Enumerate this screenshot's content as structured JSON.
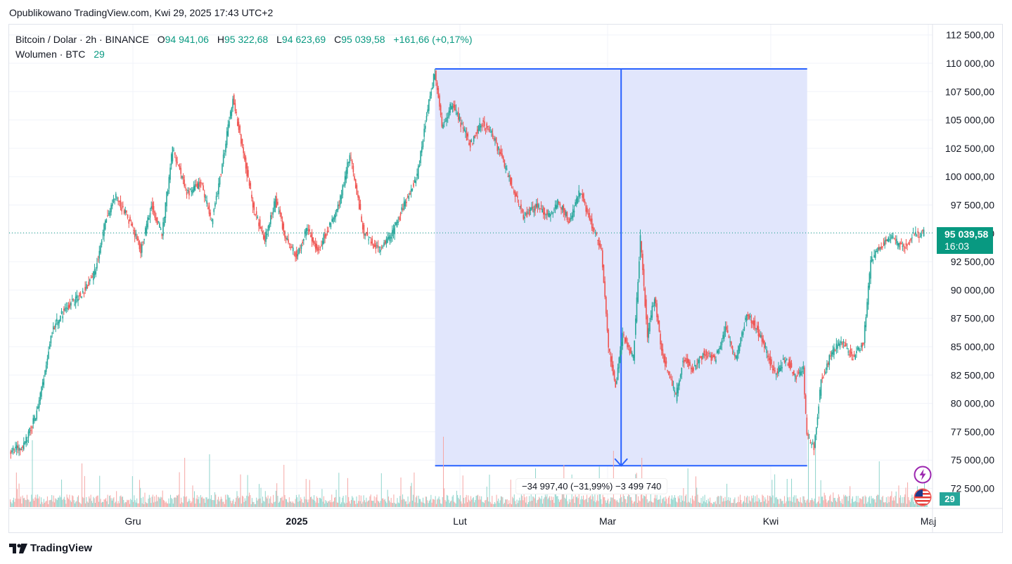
{
  "header": {
    "published_text": "Opublikowano TradingView.com, Kwi 29, 2025 17:43 UTC+2"
  },
  "legend": {
    "symbol": "Bitcoin / Dolar · 2h · BINANCE",
    "open_label": "O",
    "open": "94 941,06",
    "high_label": "H",
    "high": "95 322,68",
    "low_label": "L",
    "low": "94 623,69",
    "close_label": "C",
    "close": "95 039,58",
    "change": "+161,66 (+0,17%)",
    "volume_label": "Wolumen · BTC",
    "volume": "29"
  },
  "price_badge": {
    "price": "95 039,58",
    "countdown": "16:03"
  },
  "volume_badge": "29",
  "measure": {
    "label": "−34 997,40 (−31,99%) −3 499 740",
    "from_price": 109500,
    "to_price": 74500
  },
  "footer": {
    "brand": "TradingView"
  },
  "icons": {
    "bolt": "lightning-icon",
    "flag": "us-flag-icon",
    "logo": "tradingview-logo-icon"
  },
  "colors": {
    "up": "#26a69a",
    "down": "#ef5350",
    "measure_fill": "#dfe5fc",
    "measure_line": "#2962ff",
    "last_price": "#089981"
  },
  "chart_data": {
    "type": "candlestick",
    "title": "Bitcoin / Dolar · 2h · BINANCE",
    "y_axis_labels": [
      "112 500,00",
      "110 000,00",
      "107 500,00",
      "105 000,00",
      "102 500,00",
      "100 000,00",
      "97 500,00",
      "95 000,00",
      "92 500,00",
      "90 000,00",
      "87 500,00",
      "85 000,00",
      "82 500,00",
      "80 000,00",
      "77 500,00",
      "75 000,00",
      "72 500,00"
    ],
    "y_axis_values": [
      112500,
      110000,
      107500,
      105000,
      102500,
      100000,
      97500,
      95000,
      92500,
      90000,
      87500,
      85000,
      82500,
      80000,
      77500,
      75000,
      72500
    ],
    "x_axis_labels": [
      "Gru",
      "2025",
      "Lut",
      "Mar",
      "Kwi",
      "Maj"
    ],
    "ylim": [
      71000,
      114000
    ],
    "grid": true,
    "last_price": 95039.58,
    "price_path": [
      [
        0,
        75800
      ],
      [
        4,
        76200
      ],
      [
        8,
        79500
      ],
      [
        12,
        86500
      ],
      [
        16,
        88500
      ],
      [
        20,
        89500
      ],
      [
        24,
        91500
      ],
      [
        27,
        96000
      ],
      [
        30,
        98200
      ],
      [
        34,
        96000
      ],
      [
        37,
        93500
      ],
      [
        40,
        97500
      ],
      [
        43,
        95000
      ],
      [
        46,
        102500
      ],
      [
        50,
        98500
      ],
      [
        54,
        99500
      ],
      [
        57,
        96000
      ],
      [
        60,
        101000
      ],
      [
        63,
        107000
      ],
      [
        66,
        102000
      ],
      [
        69,
        97000
      ],
      [
        72,
        94500
      ],
      [
        75,
        98000
      ],
      [
        78,
        94500
      ],
      [
        81,
        93000
      ],
      [
        84,
        95500
      ],
      [
        87,
        93500
      ],
      [
        90,
        95500
      ],
      [
        93,
        97500
      ],
      [
        96,
        102000
      ],
      [
        100,
        95000
      ],
      [
        104,
        93500
      ],
      [
        108,
        95000
      ],
      [
        112,
        98000
      ],
      [
        115,
        100000
      ],
      [
        118,
        106000
      ],
      [
        120,
        109300
      ],
      [
        122,
        104500
      ],
      [
        125,
        106500
      ],
      [
        128,
        104200
      ],
      [
        130,
        102800
      ],
      [
        133,
        104800
      ],
      [
        136,
        104000
      ],
      [
        139,
        101500
      ],
      [
        142,
        99000
      ],
      [
        145,
        96500
      ],
      [
        149,
        97500
      ],
      [
        152,
        96500
      ],
      [
        155,
        97800
      ],
      [
        158,
        96000
      ],
      [
        161,
        98800
      ],
      [
        164,
        96000
      ],
      [
        167,
        93500
      ],
      [
        169,
        85000
      ],
      [
        171,
        81500
      ],
      [
        173,
        86000
      ],
      [
        176,
        84000
      ],
      [
        178,
        94500
      ],
      [
        180,
        86000
      ],
      [
        182,
        89500
      ],
      [
        184,
        84500
      ],
      [
        186,
        82500
      ],
      [
        188,
        80500
      ],
      [
        190,
        84000
      ],
      [
        193,
        83000
      ],
      [
        196,
        84500
      ],
      [
        199,
        83800
      ],
      [
        202,
        86500
      ],
      [
        205,
        84000
      ],
      [
        208,
        88000
      ],
      [
        211,
        86500
      ],
      [
        213,
        85000
      ],
      [
        216,
        82500
      ],
      [
        219,
        84000
      ],
      [
        222,
        82300
      ],
      [
        224,
        83000
      ],
      [
        225,
        77000
      ],
      [
        227,
        76000
      ],
      [
        229,
        82000
      ],
      [
        232,
        84500
      ],
      [
        235,
        85500
      ],
      [
        238,
        84000
      ],
      [
        241,
        85500
      ],
      [
        243,
        92500
      ],
      [
        246,
        94000
      ],
      [
        249,
        94500
      ],
      [
        252,
        93800
      ],
      [
        255,
        94800
      ],
      [
        258,
        95039
      ]
    ],
    "volume_max": 120,
    "volume_spikes": [
      [
        6,
        95
      ],
      [
        20,
        62
      ],
      [
        49,
        70
      ],
      [
        56,
        75
      ],
      [
        77,
        60
      ],
      [
        110,
        42
      ],
      [
        122,
        100
      ],
      [
        148,
        55
      ],
      [
        156,
        60
      ],
      [
        166,
        58
      ],
      [
        170,
        80
      ],
      [
        178,
        70
      ],
      [
        191,
        55
      ],
      [
        219,
        40
      ],
      [
        225,
        110
      ],
      [
        227,
        95
      ],
      [
        245,
        65
      ],
      [
        253,
        35
      ]
    ]
  }
}
